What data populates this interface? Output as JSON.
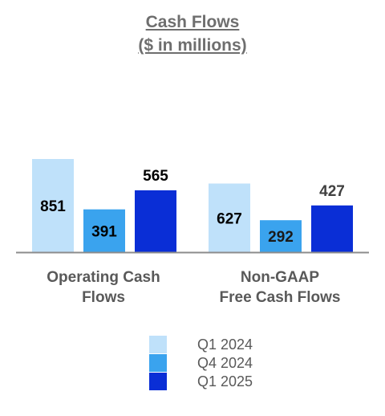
{
  "title_line1": "Cash Flows",
  "title_line2": "($ in millions)",
  "chart_data": {
    "type": "bar",
    "categories": [
      "Operating Cash Flows",
      "Non-GAAP Free Cash Flows"
    ],
    "category_lines": [
      [
        "Operating Cash",
        "Flows"
      ],
      [
        "Non-GAAP",
        "Free Cash Flows"
      ]
    ],
    "series": [
      {
        "name": "Q1 2024",
        "values": [
          851,
          627
        ],
        "color": "#bfe1fa"
      },
      {
        "name": "Q4 2024",
        "values": [
          391,
          292
        ],
        "color": "#3aa3ee"
      },
      {
        "name": "Q1 2025",
        "values": [
          565,
          427
        ],
        "color": "#0a2ed6"
      }
    ],
    "data_labels": [
      [
        "851",
        "391",
        "565"
      ],
      [
        "627",
        "292",
        "427"
      ]
    ],
    "legend_position": "bottom",
    "grid": false,
    "ylim": [
      0,
      851
    ]
  }
}
